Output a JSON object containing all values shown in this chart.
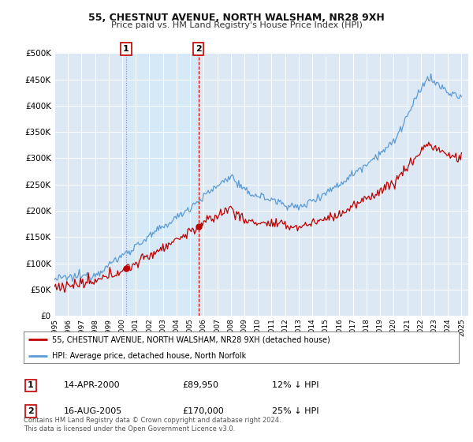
{
  "title": "55, CHESTNUT AVENUE, NORTH WALSHAM, NR28 9XH",
  "subtitle": "Price paid vs. HM Land Registry's House Price Index (HPI)",
  "legend_line1": "55, CHESTNUT AVENUE, NORTH WALSHAM, NR28 9XH (detached house)",
  "legend_line2": "HPI: Average price, detached house, North Norfolk",
  "annotation1_date": "14-APR-2000",
  "annotation1_price": "£89,950",
  "annotation1_hpi": "12% ↓ HPI",
  "annotation2_date": "16-AUG-2005",
  "annotation2_price": "£170,000",
  "annotation2_hpi": "25% ↓ HPI",
  "footnote": "Contains HM Land Registry data © Crown copyright and database right 2024.\nThis data is licensed under the Open Government Licence v3.0.",
  "hpi_color": "#5b9bd5",
  "price_color": "#c00000",
  "shade_color": "#d6eaf8",
  "background_color": "#ffffff",
  "plot_bg_color": "#dce9f5",
  "grid_color": "#ffffff",
  "ylim": [
    0,
    500000
  ],
  "yticks": [
    0,
    50000,
    100000,
    150000,
    200000,
    250000,
    300000,
    350000,
    400000,
    450000,
    500000
  ],
  "sale1_year": 2000.29,
  "sale1_price": 89950,
  "sale2_year": 2005.62,
  "sale2_price": 170000,
  "xmin": 1995,
  "xmax": 2025
}
